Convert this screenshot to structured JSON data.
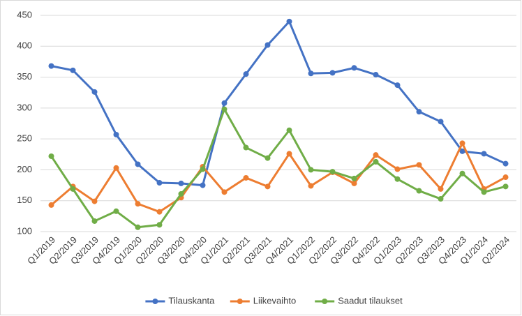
{
  "chart_data": {
    "type": "line",
    "categories": [
      "Q1/2019",
      "Q2/2019",
      "Q3/2019",
      "Q4/2019",
      "Q1/2020",
      "Q2/2020",
      "Q3/2020",
      "Q4/2020",
      "Q1/2021",
      "Q2/2021",
      "Q3/2021",
      "Q4/2021",
      "Q1/2022",
      "Q2/2022",
      "Q3/2022",
      "Q4/2022",
      "Q1/2023",
      "Q2/2023",
      "Q3/2023",
      "Q4/2023",
      "Q1/2024",
      "Q2/2024"
    ],
    "series": [
      {
        "name": "Tilauskanta",
        "color": "#4472c4",
        "values": [
          368,
          361,
          326,
          257,
          209,
          179,
          178,
          175,
          308,
          355,
          402,
          440,
          356,
          357,
          365,
          354,
          337,
          294,
          278,
          230,
          226,
          210
        ]
      },
      {
        "name": "Liikevaihto",
        "color": "#ed7d31",
        "values": [
          143,
          173,
          149,
          203,
          145,
          132,
          155,
          205,
          164,
          187,
          173,
          226,
          174,
          196,
          178,
          224,
          201,
          208,
          169,
          243,
          169,
          188
        ]
      },
      {
        "name": "Saadut tilaukset",
        "color": "#70ad47",
        "values": [
          222,
          169,
          117,
          133,
          107,
          111,
          161,
          201,
          298,
          236,
          219,
          264,
          200,
          197,
          186,
          213,
          185,
          166,
          153,
          194,
          164,
          173
        ]
      }
    ],
    "ylim": [
      100,
      450
    ],
    "yticks": [
      100,
      150,
      200,
      250,
      300,
      350,
      400,
      450
    ],
    "grid": true,
    "legend": "bottom"
  }
}
